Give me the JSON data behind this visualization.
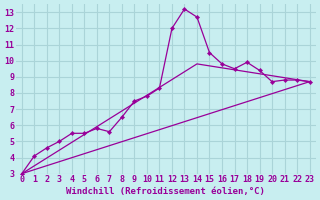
{
  "background_color": "#c8eef0",
  "grid_color": "#aad4d8",
  "line_color": "#990099",
  "xlim": [
    -0.5,
    23.5
  ],
  "ylim": [
    3,
    13.5
  ],
  "xticks": [
    0,
    1,
    2,
    3,
    4,
    5,
    6,
    7,
    8,
    9,
    10,
    11,
    12,
    13,
    14,
    15,
    16,
    17,
    18,
    19,
    20,
    21,
    22,
    23
  ],
  "yticks": [
    3,
    4,
    5,
    6,
    7,
    8,
    9,
    10,
    11,
    12,
    13
  ],
  "line1_x": [
    0,
    1,
    2,
    3,
    4,
    5,
    6,
    7,
    8,
    9,
    10,
    11,
    12,
    13,
    14,
    15,
    16,
    17,
    18,
    19,
    20,
    21,
    22,
    23
  ],
  "line1_y": [
    3.0,
    4.1,
    4.6,
    5.0,
    5.5,
    5.5,
    5.8,
    5.6,
    6.5,
    7.5,
    7.8,
    8.3,
    12.0,
    13.2,
    12.7,
    10.5,
    9.8,
    9.5,
    9.9,
    9.4,
    8.7,
    8.8,
    8.8,
    8.7
  ],
  "line2_x": [
    0,
    23
  ],
  "line2_y": [
    3.0,
    8.7
  ],
  "line3_x": [
    0,
    14,
    23
  ],
  "line3_y": [
    3.0,
    9.8,
    8.7
  ],
  "xlabel": "Windchill (Refroidissement éolien,°C)",
  "tick_fontsize": 6,
  "xlabel_fontsize": 6.5
}
